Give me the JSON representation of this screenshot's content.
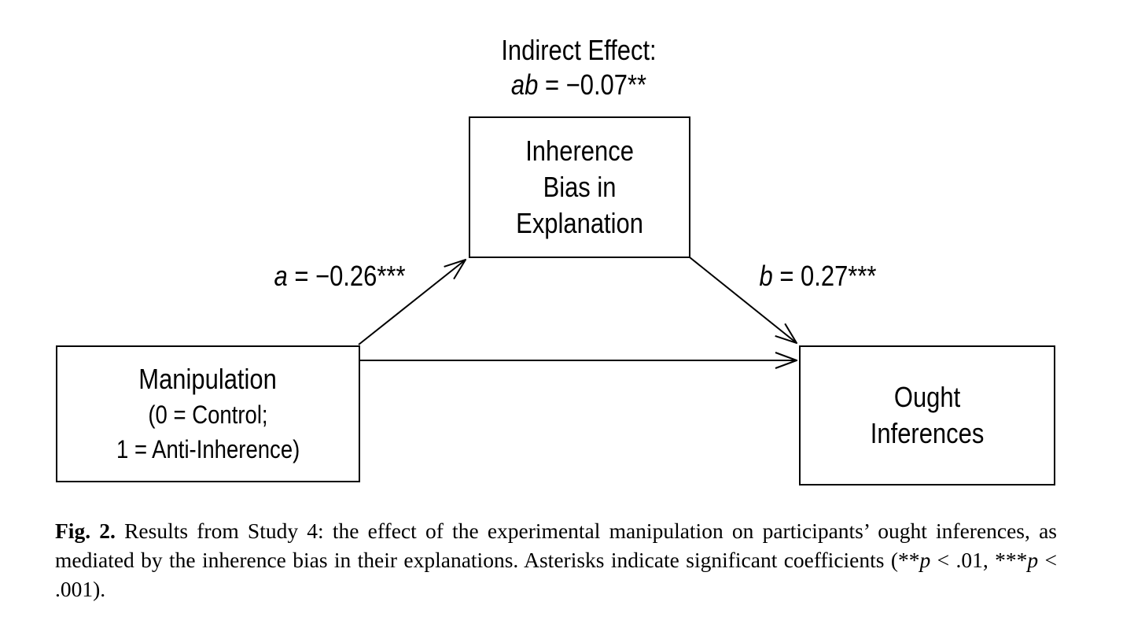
{
  "diagram": {
    "indirect": {
      "title": "Indirect Effect:",
      "sym": "ab",
      "value": " = −0.07**"
    },
    "mediator": {
      "lines": [
        "Inherence",
        "Bias in",
        "Explanation"
      ]
    },
    "predictor": {
      "title": "Manipulation",
      "sub1": "(0 = Control;",
      "sub2": "1 = Anti-Inherence)"
    },
    "outcome": {
      "lines": [
        "Ought",
        "Inferences"
      ]
    },
    "path_a": {
      "sym": "a",
      "value": " = −0.26***"
    },
    "path_b": {
      "sym": "b",
      "value": " = 0.27***"
    }
  },
  "caption": {
    "fig_label": "Fig. 2.",
    "text_1": " Results from Study 4: the effect of the experimental manipulation on participants’ ought inferences, as mediated by the inherence bias in their explanations. Asterisks indicate significant coefficients (**",
    "p1": "p",
    "text_2": " < .01, ***",
    "p2": "p",
    "text_3": " < .001)."
  }
}
